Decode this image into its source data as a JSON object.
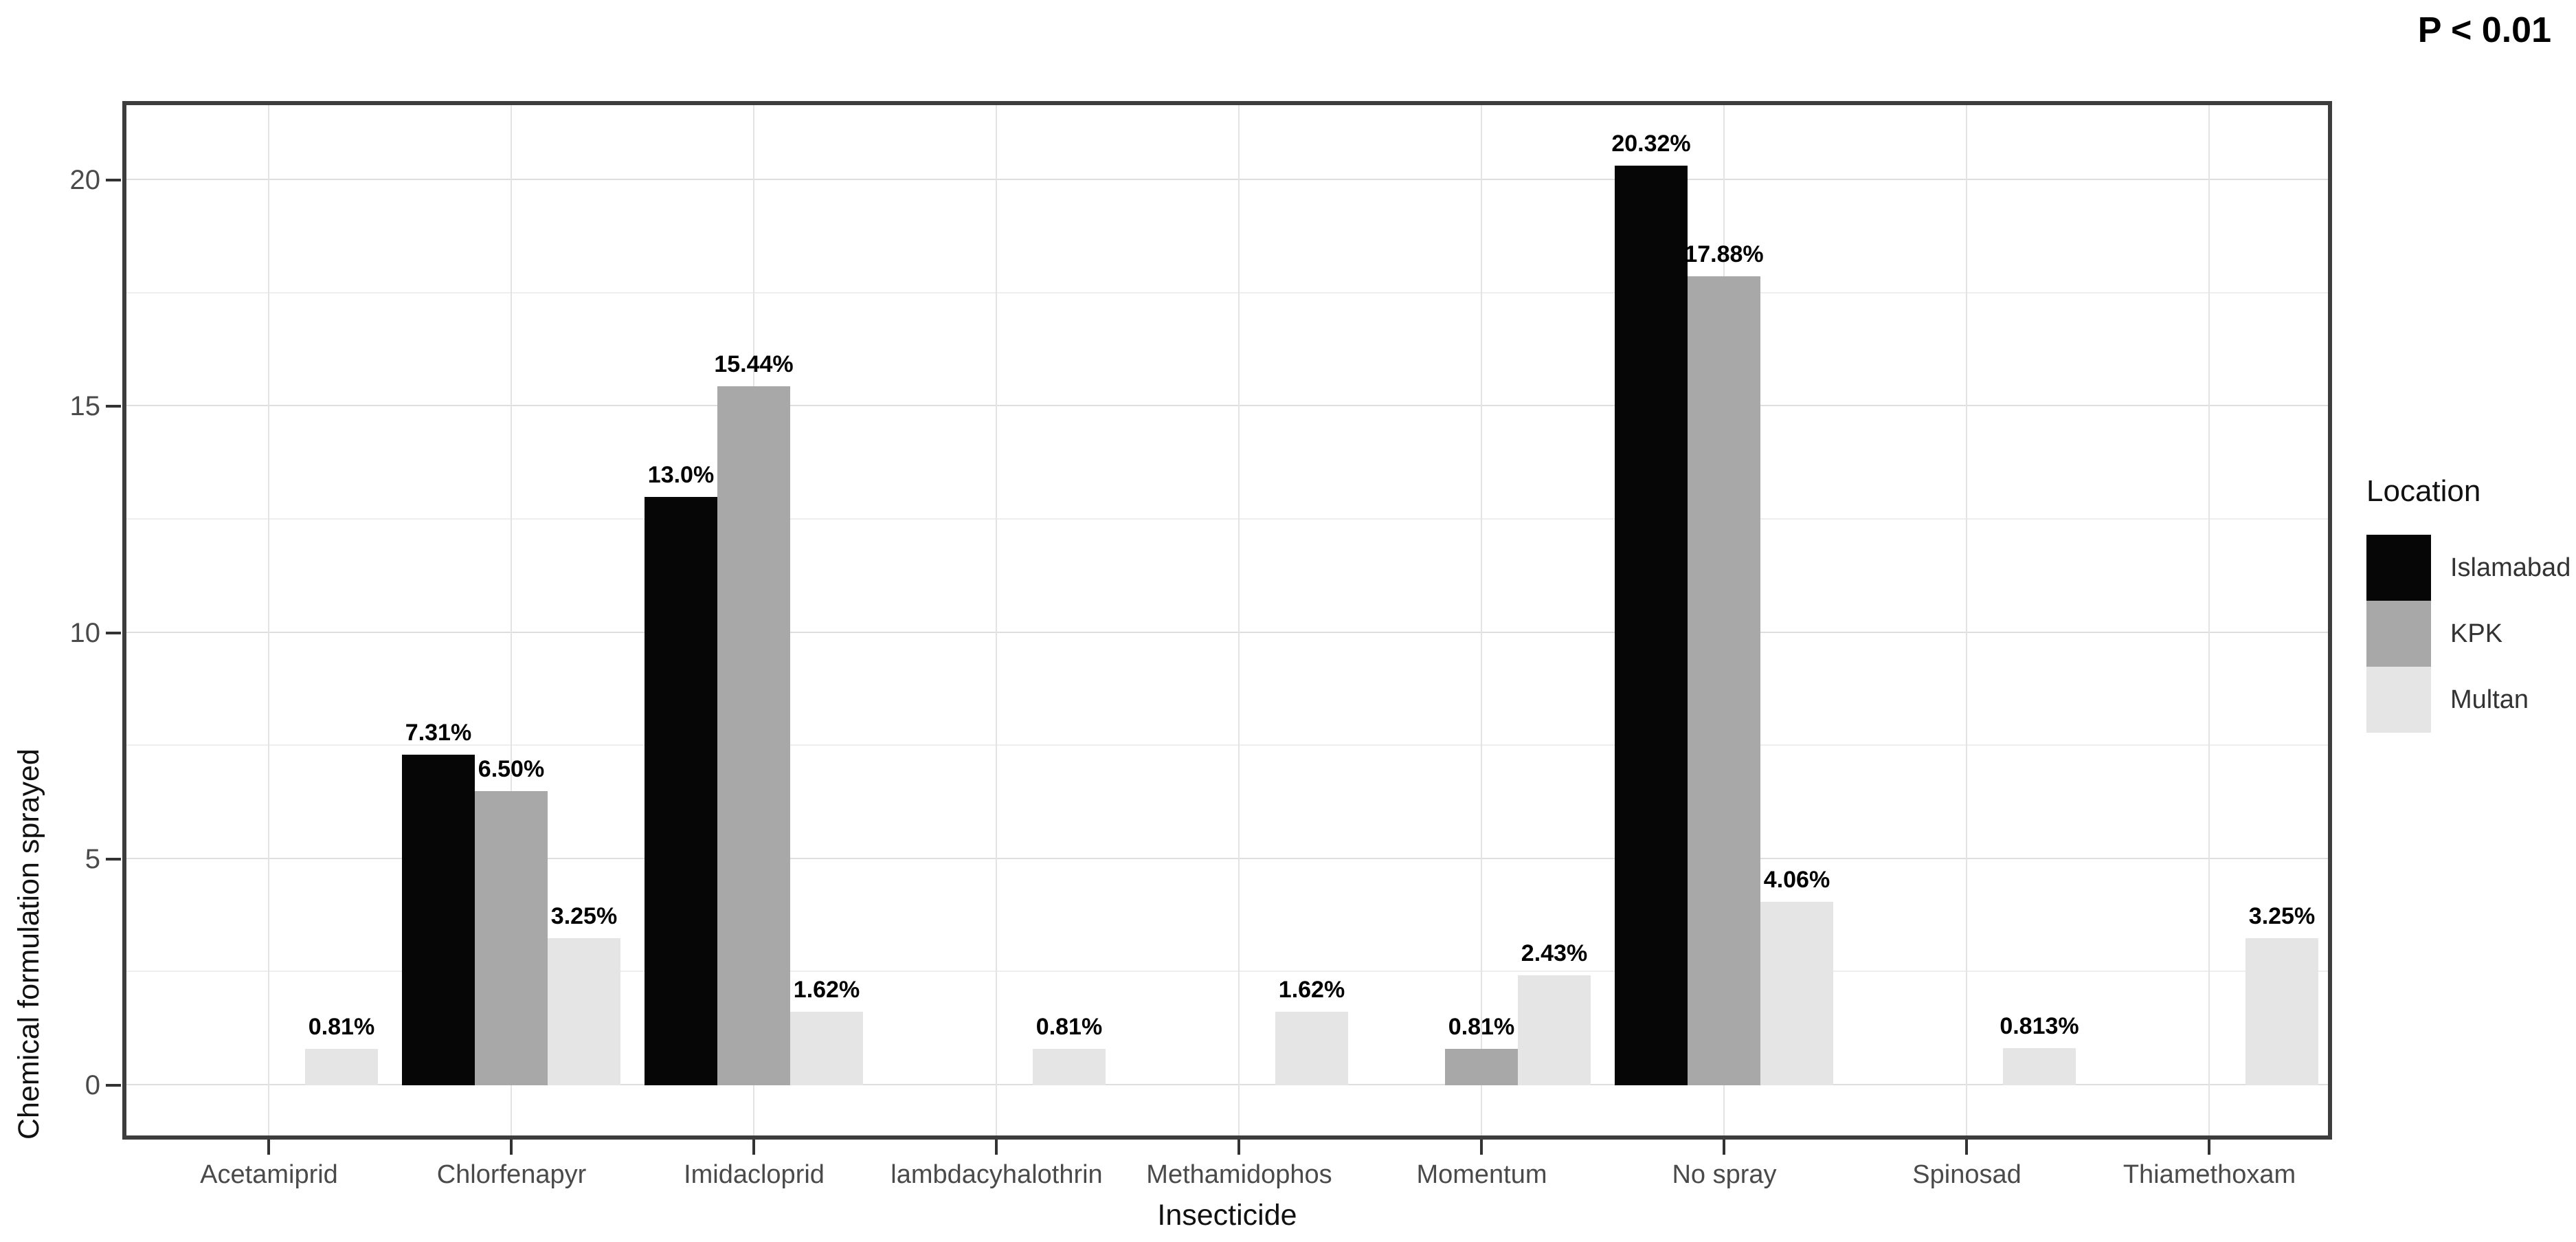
{
  "chart_data": {
    "type": "bar",
    "title": "",
    "annotation": "P < 0.01",
    "xlabel": "Insecticide",
    "ylabel": "Chemical formulation sprayed",
    "categories": [
      "Acetamiprid",
      "Chlorfenapyr",
      "Imidacloprid",
      "lambdacyhalothrin",
      "Methamidophos",
      "Momentum",
      "No spray",
      "Spinosad",
      "Thiamethoxam"
    ],
    "series": [
      {
        "name": "Islamabad",
        "color": "#060606",
        "values": [
          null,
          7.31,
          13.0,
          null,
          null,
          null,
          20.32,
          null,
          null
        ],
        "labels": [
          "",
          "7.31%",
          "13.0%",
          "",
          "",
          "",
          "20.32%",
          "",
          ""
        ]
      },
      {
        "name": "KPK",
        "color": "#a8a8a8",
        "values": [
          null,
          6.5,
          15.44,
          null,
          null,
          0.81,
          17.88,
          null,
          null
        ],
        "labels": [
          "",
          "6.50%",
          "15.44%",
          "",
          "",
          "0.81%",
          "17.88%",
          "",
          ""
        ]
      },
      {
        "name": "Multan",
        "color": "#e5e5e5",
        "values": [
          0.81,
          3.25,
          1.62,
          0.81,
          1.62,
          2.43,
          4.06,
          0.813,
          3.25
        ],
        "labels": [
          "0.81%",
          "3.25%",
          "1.62%",
          "0.81%",
          "1.62%",
          "2.43%",
          "4.06%",
          "0.813%",
          "3.25%"
        ]
      }
    ],
    "y_ticks": [
      0,
      5,
      10,
      15,
      20
    ],
    "y_minor_ticks": [
      2.5,
      7.5,
      12.5,
      17.5
    ],
    "ylim": [
      -1.2,
      21.75
    ],
    "grid": "horizontal major+minor, vertical major at category centers",
    "legend": {
      "title": "Location",
      "position": "right"
    }
  }
}
